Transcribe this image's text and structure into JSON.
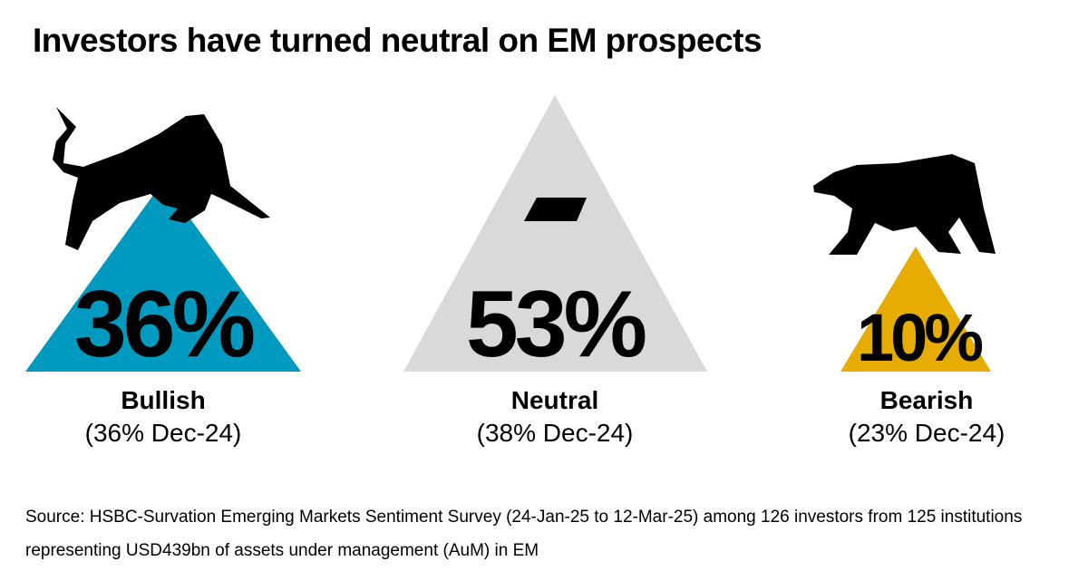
{
  "title": "Investors have turned neutral on EM prospects",
  "chart_data": {
    "type": "bar",
    "title": "Investors have turned neutral on EM prospects",
    "categories": [
      "Bullish",
      "Neutral",
      "Bearish"
    ],
    "values": [
      36,
      53,
      10
    ],
    "value_labels": [
      "36%",
      "53%",
      "10%"
    ],
    "previous_labels": [
      "(36% Dec-24)",
      "(38% Dec-24)",
      "(23% Dec-24)"
    ],
    "previous_values": [
      36,
      38,
      23
    ],
    "colors": [
      "#0099bf",
      "#d9d9d9",
      "#e6ac00"
    ],
    "icons": [
      "bull-icon",
      "minus-icon",
      "bear-icon"
    ]
  },
  "source": "Source: HSBC-Survation Emerging Markets Sentiment Survey (24-Jan-25 to 12-Mar-25) among 126 investors from 125 institutions representing USD439bn of assets under management (AuM) in EM"
}
